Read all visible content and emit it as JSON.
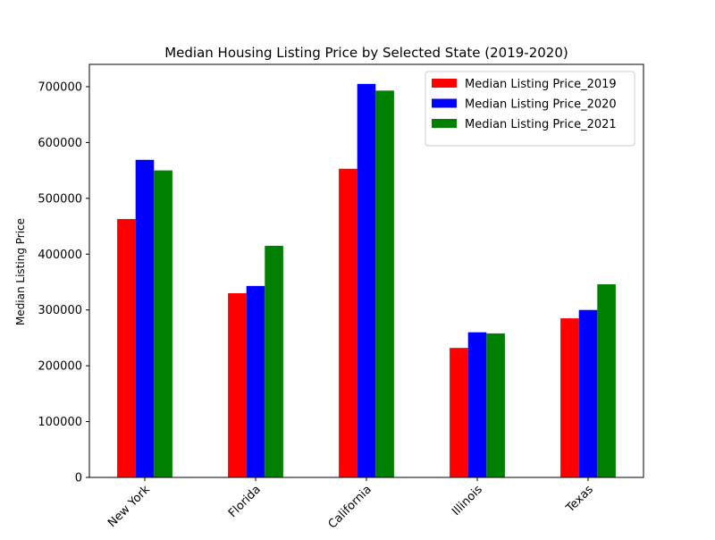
{
  "chart_data": {
    "type": "bar",
    "title": "Median Housing Listing Price by Selected State (2019-2020)",
    "xlabel": "",
    "ylabel": "Median Listing Price",
    "categories": [
      "New York",
      "Florida",
      "California",
      "Illinois",
      "Texas"
    ],
    "ylim": [
      0,
      740000
    ],
    "yticks": [
      0,
      100000,
      200000,
      300000,
      400000,
      500000,
      600000,
      700000
    ],
    "grid": false,
    "legend_position": "top-right",
    "series": [
      {
        "name": "Median Listing Price_2019",
        "color": "#ff0000",
        "values": [
          463000,
          330000,
          553000,
          232000,
          285000
        ]
      },
      {
        "name": "Median Listing Price_2020",
        "color": "#0000ff",
        "values": [
          569000,
          343000,
          705000,
          260000,
          300000
        ]
      },
      {
        "name": "Median Listing Price_2021",
        "color": "#008000",
        "values": [
          550000,
          415000,
          693000,
          258000,
          346000
        ]
      }
    ]
  }
}
